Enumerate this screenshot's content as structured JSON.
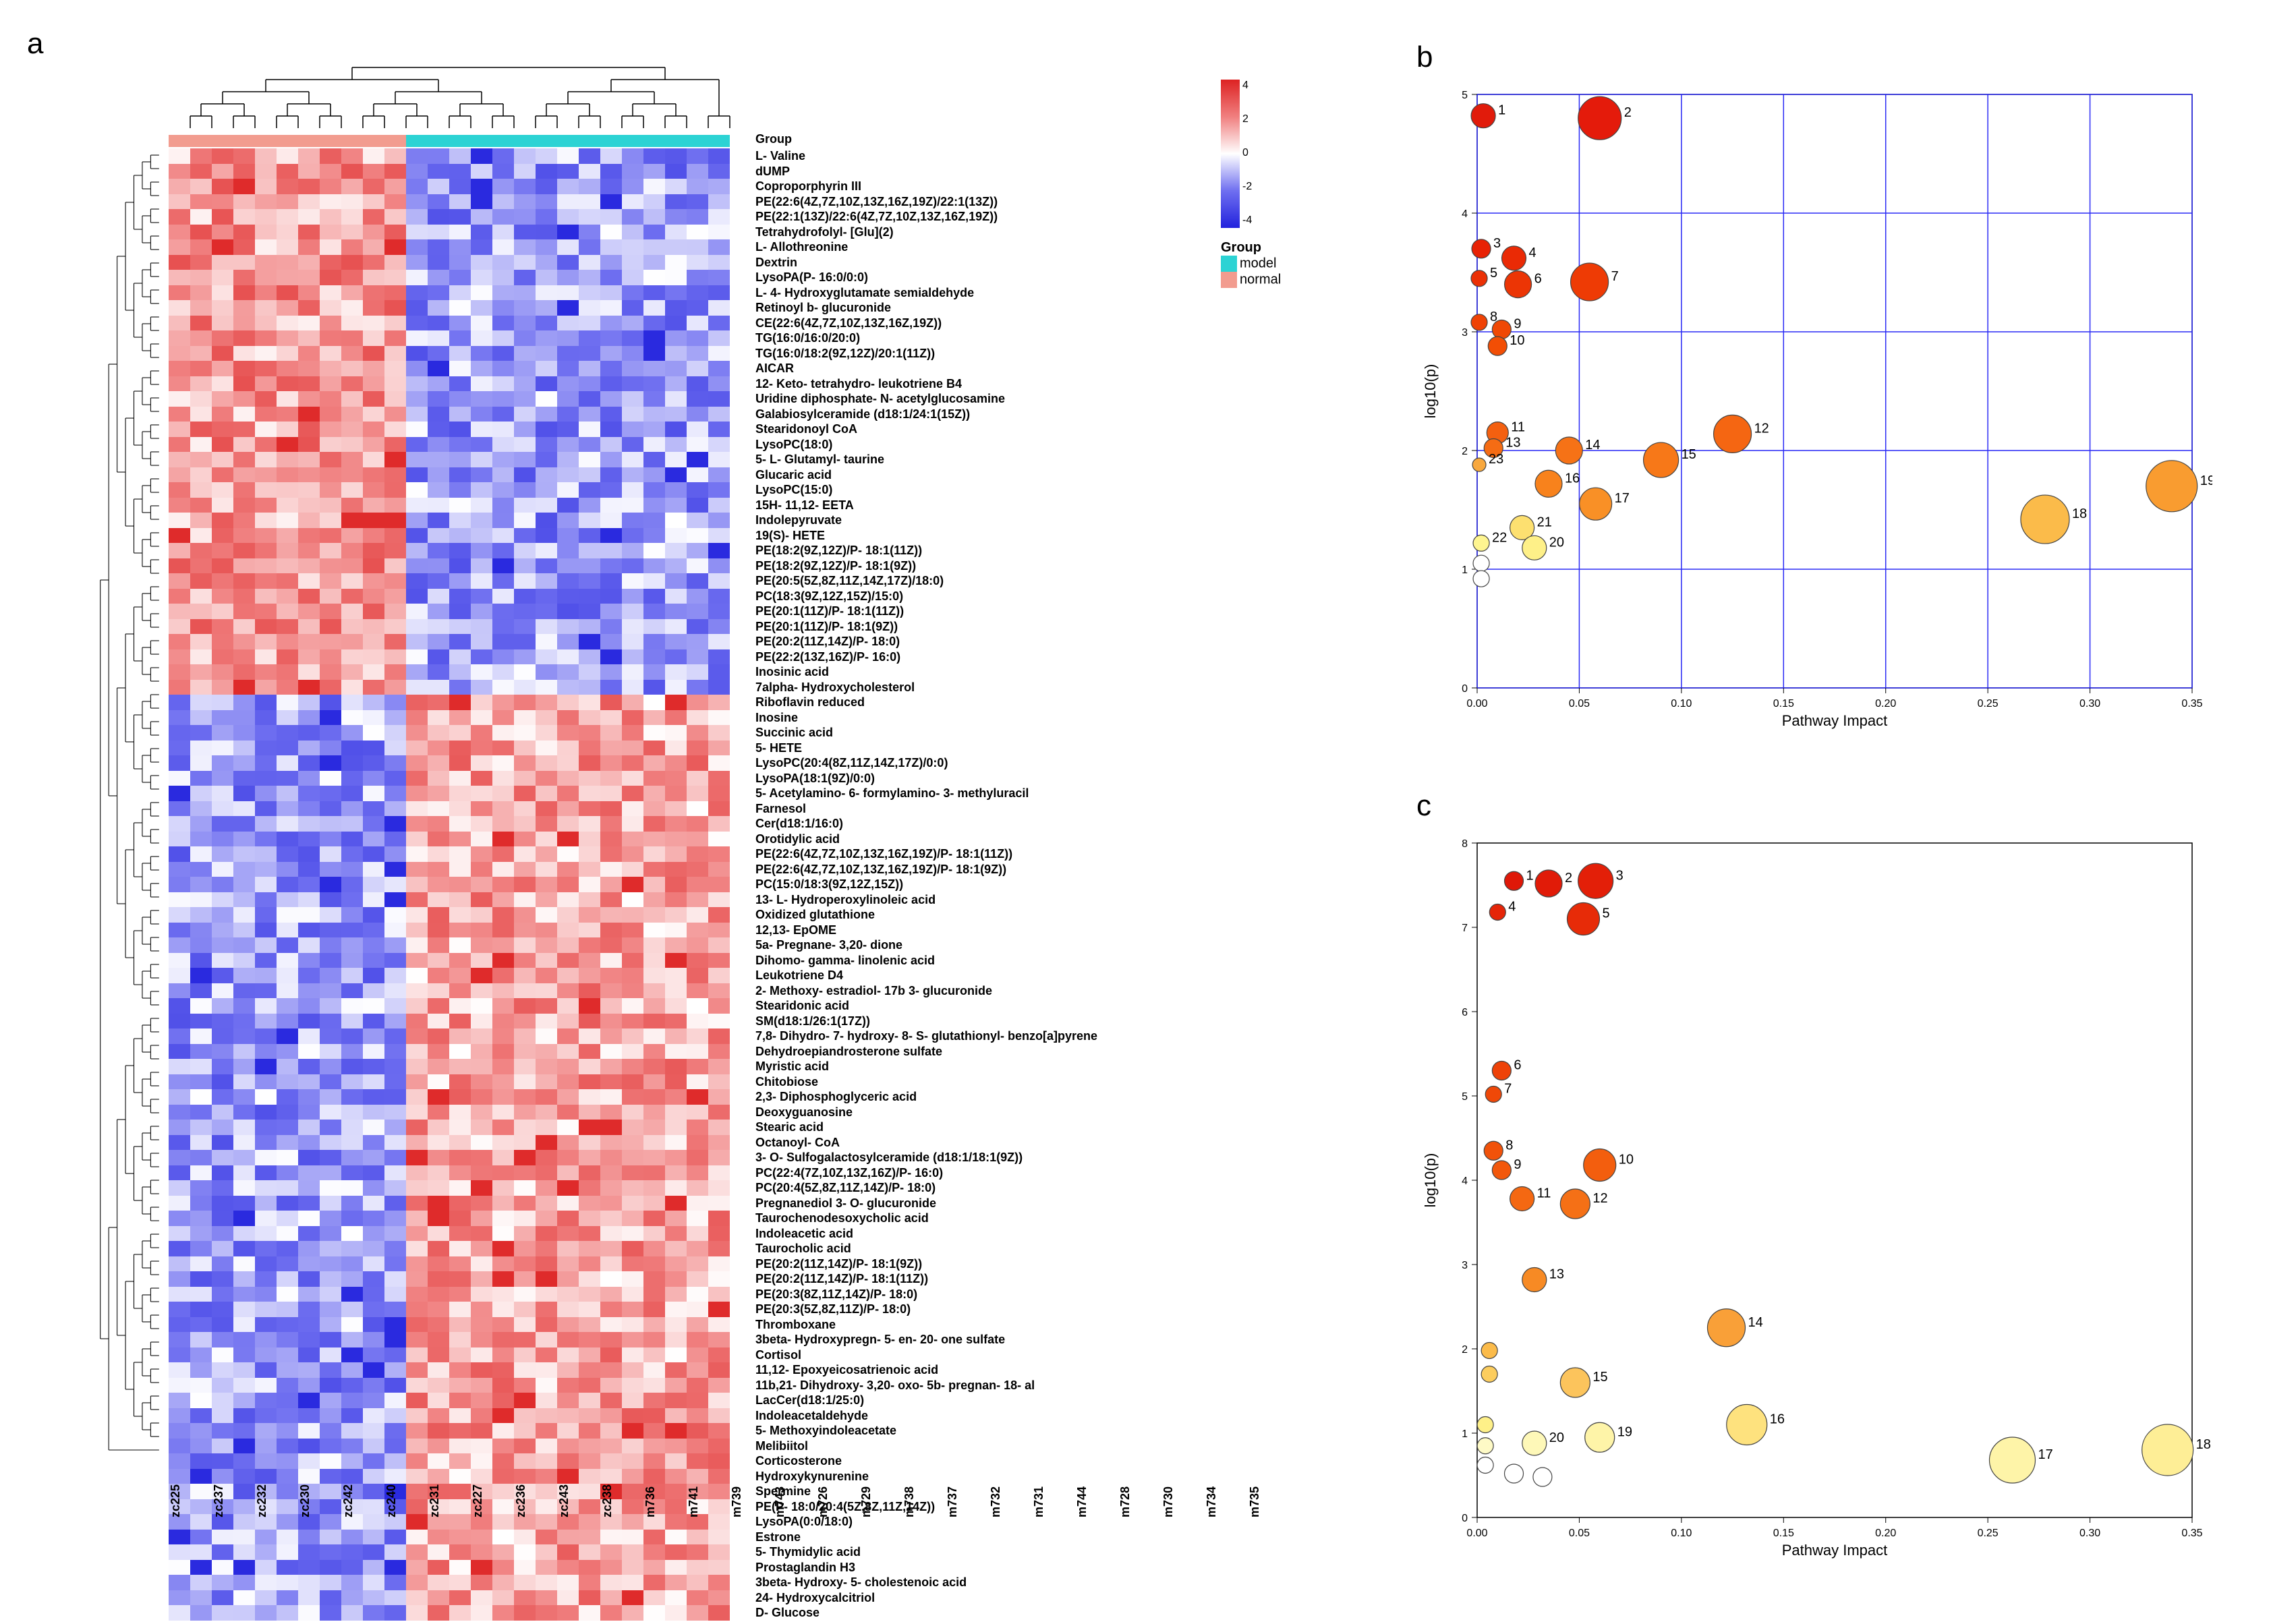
{
  "panels": {
    "a": "a",
    "b": "b",
    "c": "c"
  },
  "heatmap": {
    "type": "heatmap",
    "rows": [
      "L- Valine",
      "dUMP",
      "Coproporphyrin III",
      "PE(22:6(4Z,7Z,10Z,13Z,16Z,19Z)/22:1(13Z))",
      "PE(22:1(13Z)/22:6(4Z,7Z,10Z,13Z,16Z,19Z))",
      "Tetrahydrofolyl- [Glu](2)",
      "L- Allothreonine",
      "Dextrin",
      "LysoPA(P- 16:0/0:0)",
      "L- 4- Hydroxyglutamate semialdehyde",
      "Retinoyl b- glucuronide",
      "CE(22:6(4Z,7Z,10Z,13Z,16Z,19Z))",
      "TG(16:0/16:0/20:0)",
      "TG(16:0/18:2(9Z,12Z)/20:1(11Z))",
      "AICAR",
      "12- Keto- tetrahydro- leukotriene B4",
      "Uridine diphosphate- N- acetylglucosamine",
      "Galabiosylceramide (d18:1/24:1(15Z))",
      "Stearidonoyl CoA",
      "LysoPC(18:0)",
      "5- L- Glutamyl- taurine",
      "Glucaric acid",
      "LysoPC(15:0)",
      "15H- 11,12- EETA",
      "Indolepyruvate",
      "19(S)- HETE",
      "PE(18:2(9Z,12Z)/P- 18:1(11Z))",
      "PE(18:2(9Z,12Z)/P- 18:1(9Z))",
      "PE(20:5(5Z,8Z,11Z,14Z,17Z)/18:0)",
      "PC(18:3(9Z,12Z,15Z)/15:0)",
      "PE(20:1(11Z)/P- 18:1(11Z))",
      "PE(20:1(11Z)/P- 18:1(9Z))",
      "PE(20:2(11Z,14Z)/P- 18:0)",
      "PE(22:2(13Z,16Z)/P- 16:0)",
      "Inosinic acid",
      "7alpha- Hydroxycholesterol",
      "Riboflavin reduced",
      "Inosine",
      "Succinic acid",
      "5- HETE",
      "LysoPC(20:4(8Z,11Z,14Z,17Z)/0:0)",
      "LysoPA(18:1(9Z)/0:0)",
      "5- Acetylamino- 6- formylamino- 3- methyluracil",
      "Farnesol",
      "Cer(d18:1/16:0)",
      "Orotidylic acid",
      "PE(22:6(4Z,7Z,10Z,13Z,16Z,19Z)/P- 18:1(11Z))",
      "PE(22:6(4Z,7Z,10Z,13Z,16Z,19Z)/P- 18:1(9Z))",
      "PC(15:0/18:3(9Z,12Z,15Z))",
      "13- L- Hydroperoxylinoleic acid",
      "Oxidized glutathione",
      "12,13- EpOME",
      "5a- Pregnane- 3,20- dione",
      "Dihomo- gamma- linolenic acid",
      "Leukotriene D4",
      "2- Methoxy- estradiol- 17b 3- glucuronide",
      "Stearidonic acid",
      "SM(d18:1/26:1(17Z))",
      "7,8- Dihydro- 7- hydroxy- 8- S- glutathionyl- benzo[a]pyrene",
      "Dehydroepiandrosterone sulfate",
      "Myristic acid",
      "Chitobiose",
      "2,3- Diphosphoglyceric acid",
      "Deoxyguanosine",
      "Stearic acid",
      "Octanoyl- CoA",
      "3- O- Sulfogalactosylceramide (d18:1/18:1(9Z))",
      "PC(22:4(7Z,10Z,13Z,16Z)/P- 16:0)",
      "PC(20:4(5Z,8Z,11Z,14Z)/P- 18:0)",
      "Pregnanediol 3- O- glucuronide",
      "Taurochenodesoxycholic acid",
      "Indoleacetic acid",
      "Taurocholic acid",
      "PE(20:2(11Z,14Z)/P- 18:1(9Z))",
      "PE(20:2(11Z,14Z)/P- 18:1(11Z))",
      "PE(20:3(8Z,11Z,14Z)/P- 18:0)",
      "PE(20:3(5Z,8Z,11Z)/P- 18:0)",
      "Thromboxane",
      "3beta- Hydroxypregn- 5- en- 20- one sulfate",
      "Cortisol",
      "11,12- Epoxyeicosatrienoic acid",
      "11b,21- Dihydroxy- 3,20- oxo- 5b- pregnan- 18- al",
      "LacCer(d18:1/25:0)",
      "Indoleacetaldehyde",
      "5- Methoxyindoleacetate",
      "Melibiitol",
      "Corticosterone",
      "Hydroxykynurenine",
      "Spermine",
      "PE(P- 18:0/20:4(5Z,8Z,11Z,14Z))",
      "LysoPA(0:0/18:0)",
      "Estrone",
      "5- Thymidylic acid",
      "Prostaglandin H3",
      "3beta- Hydroxy- 5- cholestenoic acid",
      "24- Hydroxycalcitriol",
      "D- Glucose"
    ],
    "cols_normal": [
      "zc225",
      "zc237",
      "zc232",
      "zc230",
      "zc242",
      "zc240",
      "zc231",
      "zc227",
      "zc236",
      "zc243",
      "zc238"
    ],
    "cols_model": [
      "m736",
      "m741",
      "m739",
      "m743",
      "m726",
      "m729",
      "m738",
      "m737",
      "m732",
      "m731",
      "m744",
      "m728",
      "m730",
      "m734",
      "m735"
    ],
    "group_colors": {
      "normal": "#f29c8f",
      "model": "#2cd3d4"
    },
    "gradient": {
      "min": -4,
      "max": 4,
      "stops": [
        "#2222dd",
        "#6f6ff0",
        "#ffffff",
        "#f07f7f",
        "#dd2222"
      ]
    },
    "scale_ticks": [
      4,
      2,
      0,
      -2,
      -4
    ],
    "group_title": "Group",
    "group_legend": [
      {
        "label": "model",
        "color": "#2cd3d4"
      },
      {
        "label": "normal",
        "color": "#f29c8f"
      }
    ],
    "block1_rows": 36,
    "cell": {
      "w": 32,
      "h": 22.5
    }
  },
  "bubble_b": {
    "type": "bubble",
    "xlabel": "Pathway Impact",
    "ylabel": "log10(p)",
    "xlim": [
      0,
      0.35
    ],
    "ylim": [
      0,
      5
    ],
    "xticks": [
      0.0,
      0.05,
      0.1,
      0.15,
      0.2,
      0.25,
      0.3,
      0.35
    ],
    "yticks": [
      0,
      1,
      2,
      3,
      4,
      5
    ],
    "grid_color": "#2a2af5",
    "bg": "#ffffff",
    "label_fontsize": 22,
    "tick_fontsize": 16,
    "points": [
      {
        "n": "1",
        "x": 0.003,
        "y": 4.82,
        "r": 18,
        "c": "#e11b0b"
      },
      {
        "n": "2",
        "x": 0.06,
        "y": 4.8,
        "r": 32,
        "c": "#e41b0b"
      },
      {
        "n": "3",
        "x": 0.002,
        "y": 3.7,
        "r": 14,
        "c": "#e82205"
      },
      {
        "n": "4",
        "x": 0.018,
        "y": 3.62,
        "r": 18,
        "c": "#ea2a05"
      },
      {
        "n": "5",
        "x": 0.001,
        "y": 3.45,
        "r": 12,
        "c": "#eb3005"
      },
      {
        "n": "6",
        "x": 0.02,
        "y": 3.4,
        "r": 20,
        "c": "#ec3505"
      },
      {
        "n": "7",
        "x": 0.055,
        "y": 3.42,
        "r": 28,
        "c": "#ee3b05"
      },
      {
        "n": "8",
        "x": 0.001,
        "y": 3.08,
        "r": 12,
        "c": "#ef4205"
      },
      {
        "n": "9",
        "x": 0.012,
        "y": 3.02,
        "r": 14,
        "c": "#f04805"
      },
      {
        "n": "10",
        "x": 0.01,
        "y": 2.88,
        "r": 14,
        "c": "#f24e05"
      },
      {
        "n": "11",
        "x": 0.01,
        "y": 2.15,
        "r": 16,
        "c": "#f46010"
      },
      {
        "n": "12",
        "x": 0.125,
        "y": 2.14,
        "r": 28,
        "c": "#f56612"
      },
      {
        "n": "13",
        "x": 0.008,
        "y": 2.02,
        "r": 14,
        "c": "#f56c14"
      },
      {
        "n": "14",
        "x": 0.045,
        "y": 2.0,
        "r": 20,
        "c": "#f67216"
      },
      {
        "n": "15",
        "x": 0.09,
        "y": 1.92,
        "r": 26,
        "c": "#f77818"
      },
      {
        "n": "23",
        "x": 0.001,
        "y": 1.88,
        "r": 10,
        "c": "#f8a83e"
      },
      {
        "n": "16",
        "x": 0.035,
        "y": 1.72,
        "r": 20,
        "c": "#f8821c"
      },
      {
        "n": "17",
        "x": 0.058,
        "y": 1.55,
        "r": 24,
        "c": "#f99026"
      },
      {
        "n": "18",
        "x": 0.278,
        "y": 1.42,
        "r": 36,
        "c": "#fbbb4a"
      },
      {
        "n": "19",
        "x": 0.34,
        "y": 1.7,
        "r": 38,
        "c": "#f99c30"
      },
      {
        "n": "21",
        "x": 0.022,
        "y": 1.35,
        "r": 18,
        "c": "#fde070"
      },
      {
        "n": "20",
        "x": 0.028,
        "y": 1.18,
        "r": 18,
        "c": "#fef088"
      },
      {
        "n": "22",
        "x": 0.002,
        "y": 1.22,
        "r": 12,
        "c": "#fef590"
      },
      {
        "n": "",
        "x": 0.002,
        "y": 1.05,
        "r": 12,
        "c": "#ffffff"
      },
      {
        "n": "",
        "x": 0.002,
        "y": 0.92,
        "r": 12,
        "c": "#ffffff"
      }
    ]
  },
  "bubble_c": {
    "type": "bubble",
    "xlabel": "Pathway Impact",
    "ylabel": "log10(p)",
    "xlim": [
      0,
      0.35
    ],
    "ylim": [
      0,
      8
    ],
    "xticks": [
      0.0,
      0.05,
      0.1,
      0.15,
      0.2,
      0.25,
      0.3,
      0.35
    ],
    "yticks": [
      0,
      1,
      2,
      3,
      4,
      5,
      6,
      7,
      8
    ],
    "grid_color": "#ffffff",
    "bg": "#ffffff",
    "label_fontsize": 22,
    "tick_fontsize": 16,
    "points": [
      {
        "n": "1",
        "x": 0.018,
        "y": 7.55,
        "r": 14,
        "c": "#df1808"
      },
      {
        "n": "2",
        "x": 0.035,
        "y": 7.52,
        "r": 20,
        "c": "#e11b08"
      },
      {
        "n": "3",
        "x": 0.058,
        "y": 7.55,
        "r": 26,
        "c": "#e31f08"
      },
      {
        "n": "4",
        "x": 0.01,
        "y": 7.18,
        "r": 12,
        "c": "#e52508"
      },
      {
        "n": "5",
        "x": 0.052,
        "y": 7.1,
        "r": 24,
        "c": "#e72b08"
      },
      {
        "n": "6",
        "x": 0.012,
        "y": 5.3,
        "r": 14,
        "c": "#ee4208"
      },
      {
        "n": "7",
        "x": 0.008,
        "y": 5.02,
        "r": 12,
        "c": "#ef4808"
      },
      {
        "n": "8",
        "x": 0.008,
        "y": 4.35,
        "r": 14,
        "c": "#f1520a"
      },
      {
        "n": "9",
        "x": 0.012,
        "y": 4.12,
        "r": 14,
        "c": "#f2580c"
      },
      {
        "n": "10",
        "x": 0.06,
        "y": 4.18,
        "r": 24,
        "c": "#f35e0e"
      },
      {
        "n": "11",
        "x": 0.022,
        "y": 3.78,
        "r": 18,
        "c": "#f46812"
      },
      {
        "n": "12",
        "x": 0.048,
        "y": 3.72,
        "r": 22,
        "c": "#f57016"
      },
      {
        "n": "13",
        "x": 0.028,
        "y": 2.82,
        "r": 18,
        "c": "#f78a24"
      },
      {
        "n": "14",
        "x": 0.122,
        "y": 2.25,
        "r": 28,
        "c": "#f9a038"
      },
      {
        "n": "15",
        "x": 0.048,
        "y": 1.6,
        "r": 22,
        "c": "#fcc45c"
      },
      {
        "n": "16",
        "x": 0.132,
        "y": 1.1,
        "r": 30,
        "c": "#fee27e"
      },
      {
        "n": "17",
        "x": 0.262,
        "y": 0.68,
        "r": 34,
        "c": "#fef4a8"
      },
      {
        "n": "18",
        "x": 0.338,
        "y": 0.8,
        "r": 38,
        "c": "#feee96"
      },
      {
        "n": "19",
        "x": 0.06,
        "y": 0.95,
        "r": 22,
        "c": "#fef4a8"
      },
      {
        "n": "20",
        "x": 0.028,
        "y": 0.88,
        "r": 18,
        "c": "#fef8b8"
      },
      {
        "n": "",
        "x": 0.006,
        "y": 1.98,
        "r": 12,
        "c": "#fbbb4a"
      },
      {
        "n": "",
        "x": 0.006,
        "y": 1.7,
        "r": 12,
        "c": "#fccd5e"
      },
      {
        "n": "",
        "x": 0.004,
        "y": 1.1,
        "r": 12,
        "c": "#fef088"
      },
      {
        "n": "",
        "x": 0.004,
        "y": 0.85,
        "r": 12,
        "c": "#fefac6"
      },
      {
        "n": "",
        "x": 0.004,
        "y": 0.62,
        "r": 12,
        "c": "#ffffff"
      },
      {
        "n": "",
        "x": 0.018,
        "y": 0.52,
        "r": 14,
        "c": "#ffffff"
      },
      {
        "n": "",
        "x": 0.032,
        "y": 0.48,
        "r": 14,
        "c": "#ffffff"
      }
    ]
  }
}
